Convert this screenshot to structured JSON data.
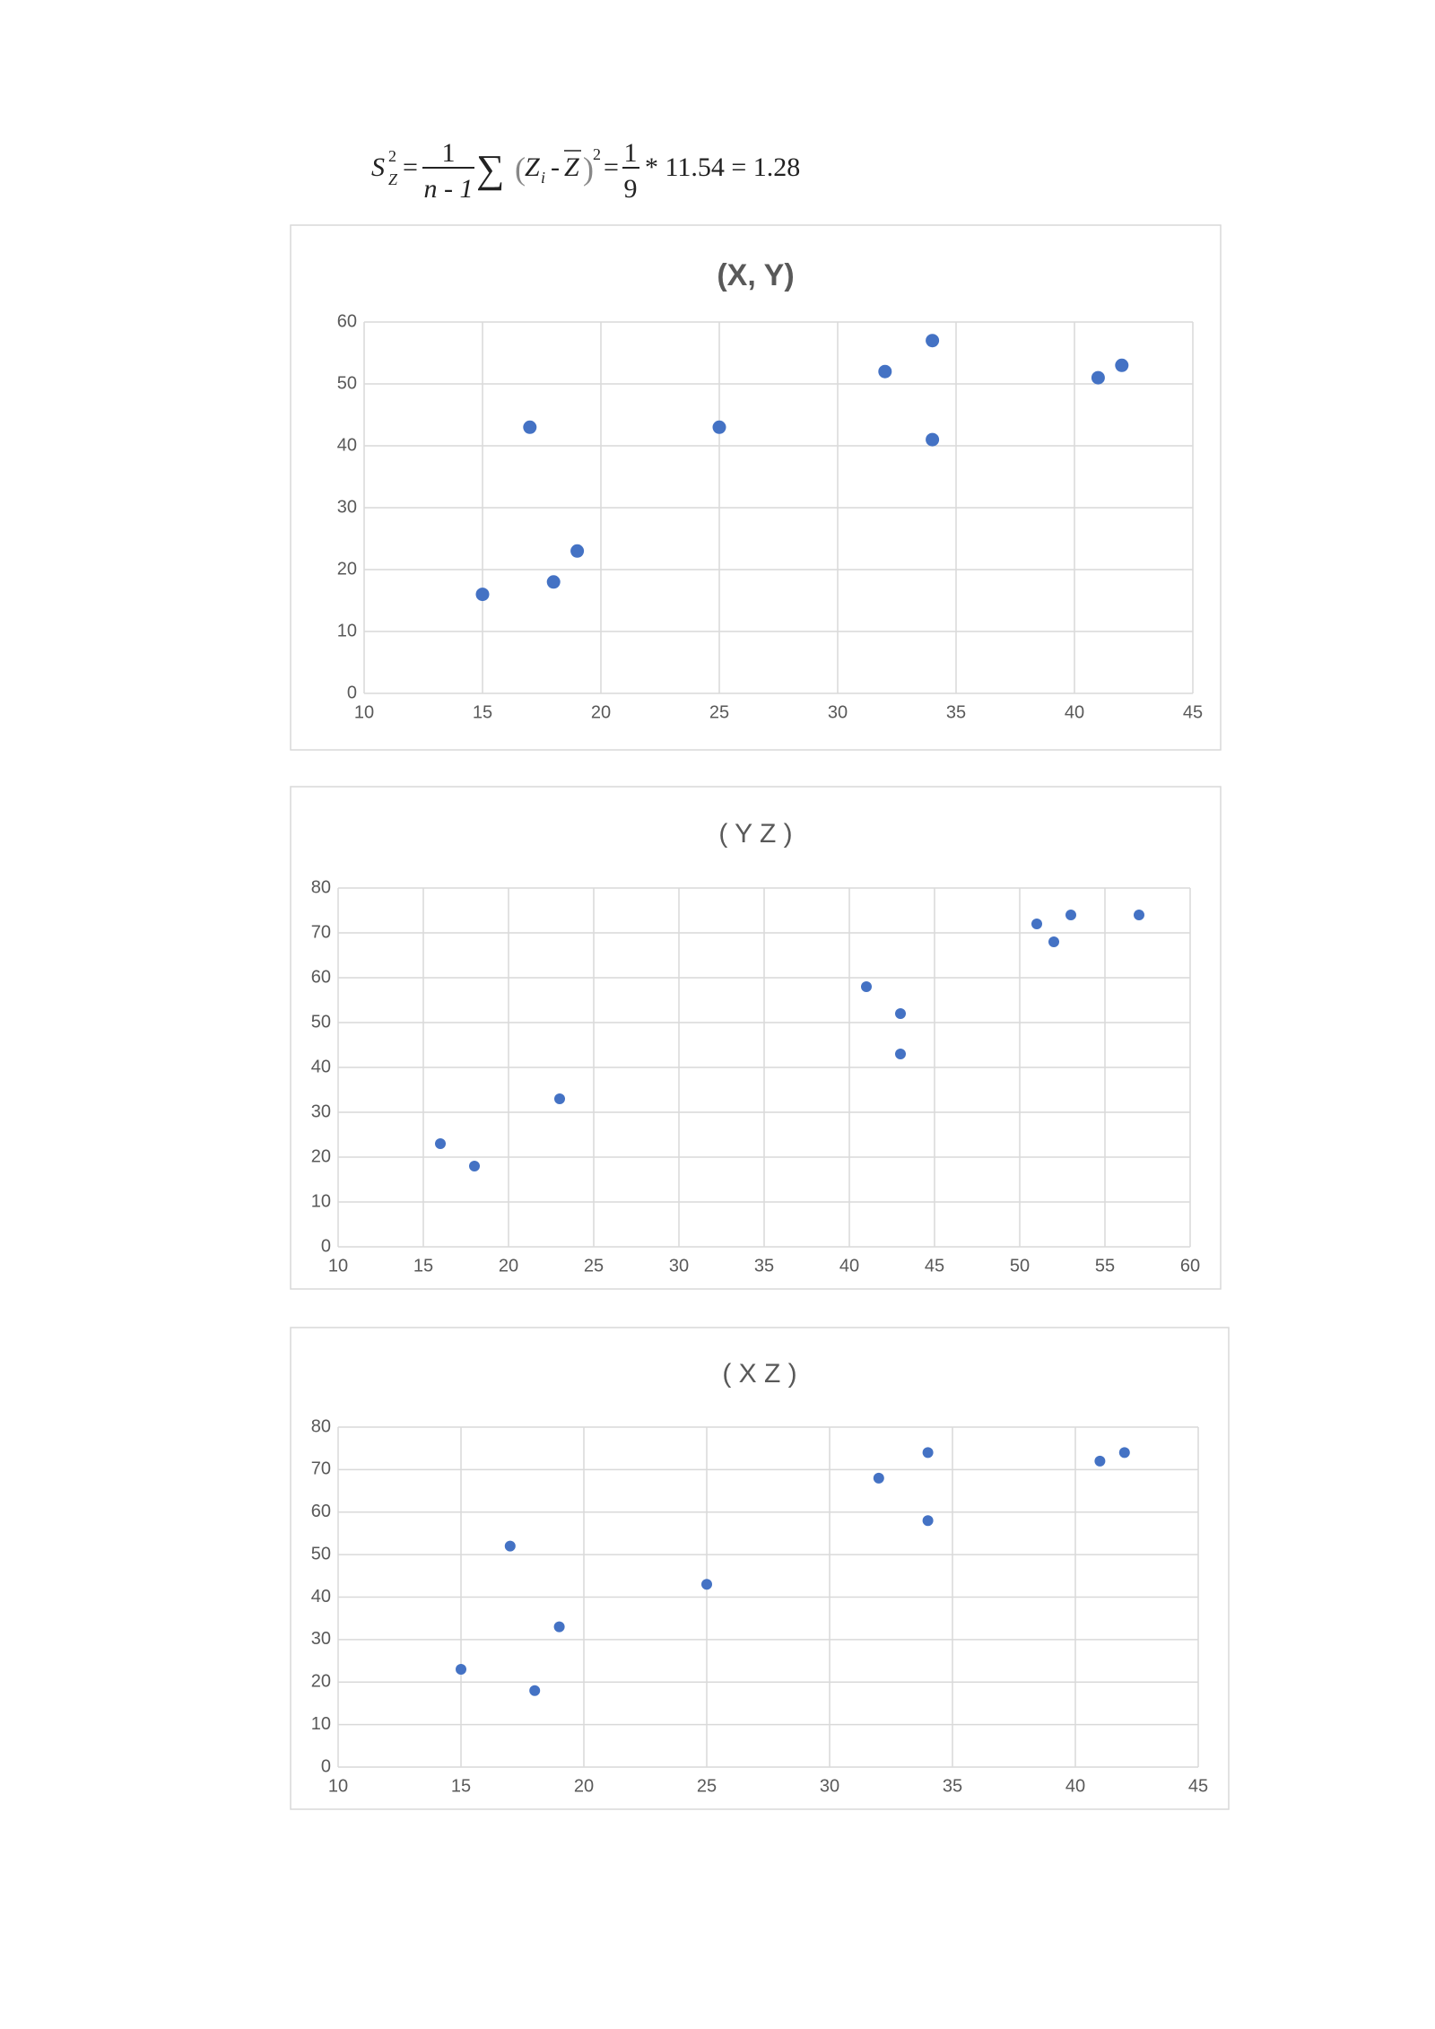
{
  "formula": {
    "lhs": "S",
    "lhs_sub": "Z",
    "lhs_sup": "2",
    "eq1": "=",
    "frac1_num": "1",
    "frac1_den": "n - 1",
    "sum": "∑",
    "paren_open": "(",
    "zi": "Z",
    "zi_sub": "i",
    "minus": "-",
    "zbar": "Z",
    "paren_close": ")",
    "sup2": "2",
    "eq2": "=",
    "frac2_num": "1",
    "frac2_den": "9",
    "tail": "* 11.54 = 1.28"
  },
  "chart_data": [
    {
      "type": "scatter",
      "title": "(X, Y)",
      "color": "#4472c4",
      "grid": true,
      "x": [
        15,
        17,
        18,
        19,
        25,
        32,
        34,
        34,
        41,
        42
      ],
      "y": [
        16,
        43,
        18,
        23,
        43,
        52,
        57,
        41,
        51,
        53
      ],
      "xlim": [
        10,
        45
      ],
      "xticks": [
        10,
        15,
        20,
        25,
        30,
        35,
        40,
        45
      ],
      "ylim": [
        0,
        60
      ],
      "yticks": [
        0,
        10,
        20,
        30,
        40,
        50,
        60
      ]
    },
    {
      "type": "scatter",
      "title": "( Y Z )",
      "color": "#4472c4",
      "grid": true,
      "x": [
        16,
        18,
        23,
        41,
        43,
        43,
        51,
        52,
        53,
        57
      ],
      "y": [
        23,
        18,
        33,
        58,
        52,
        43,
        72,
        68,
        74,
        74
      ],
      "xlim": [
        10,
        60
      ],
      "xticks": [
        10,
        15,
        20,
        25,
        30,
        35,
        40,
        45,
        50,
        55,
        60
      ],
      "ylim": [
        0,
        80
      ],
      "yticks": [
        0,
        10,
        20,
        30,
        40,
        50,
        60,
        70,
        80
      ]
    },
    {
      "type": "scatter",
      "title": "( X Z )",
      "color": "#4472c4",
      "grid": true,
      "x": [
        15,
        17,
        18,
        19,
        25,
        32,
        34,
        34,
        41,
        42
      ],
      "y": [
        23,
        52,
        18,
        33,
        43,
        68,
        74,
        58,
        72,
        74
      ],
      "xlim": [
        10,
        45
      ],
      "xticks": [
        10,
        15,
        20,
        25,
        30,
        35,
        40,
        45
      ],
      "ylim": [
        0,
        80
      ],
      "yticks": [
        0,
        10,
        20,
        30,
        40,
        50,
        60,
        70,
        80
      ]
    }
  ]
}
